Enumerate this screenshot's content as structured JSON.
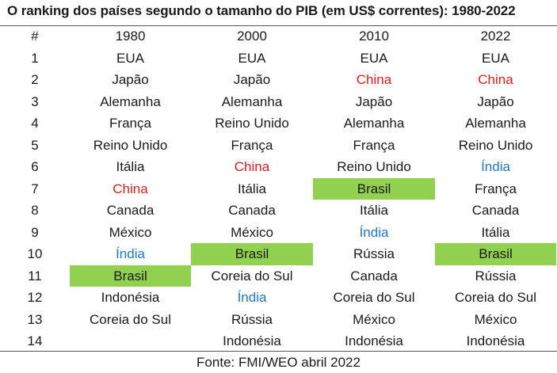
{
  "title": "O ranking dos países segundo o tamanho do PIB (em US$ correntes): 1980-2022",
  "header": {
    "rank": "#",
    "years": [
      "1980",
      "2000",
      "2010",
      "2022"
    ]
  },
  "rows": [
    {
      "rank": "1",
      "cells": [
        "EUA",
        "EUA",
        "EUA",
        "EUA"
      ]
    },
    {
      "rank": "2",
      "cells": [
        "Japão",
        "Japão",
        "China",
        "China"
      ]
    },
    {
      "rank": "3",
      "cells": [
        "Alemanha",
        "Alemanha",
        "Japão",
        "Japão"
      ]
    },
    {
      "rank": "4",
      "cells": [
        "França",
        "Reino Unido",
        "Alemanha",
        "Alemanha"
      ]
    },
    {
      "rank": "5",
      "cells": [
        "Reino Unido",
        "França",
        "França",
        "Reino Unido"
      ]
    },
    {
      "rank": "6",
      "cells": [
        "Itália",
        "China",
        "Reino Unido",
        "Índia"
      ]
    },
    {
      "rank": "7",
      "cells": [
        "China",
        "Itália",
        "Brasil",
        "França"
      ]
    },
    {
      "rank": "8",
      "cells": [
        "Canada",
        "Canada",
        "Itália",
        "Canada"
      ]
    },
    {
      "rank": "9",
      "cells": [
        "México",
        "México",
        "Índia",
        "Itália"
      ]
    },
    {
      "rank": "10",
      "cells": [
        "Índia",
        "Brasil",
        "Rússia",
        "Brasil"
      ]
    },
    {
      "rank": "11",
      "cells": [
        "Brasil",
        "Coreia do Sul",
        "Canada",
        "Rússia"
      ]
    },
    {
      "rank": "12",
      "cells": [
        "Indonésia",
        "Índia",
        "Coreia do Sul",
        "Coreia do Sul"
      ]
    },
    {
      "rank": "13",
      "cells": [
        "Coreia do Sul",
        "Rússia",
        "México",
        "México"
      ]
    },
    {
      "rank": "14",
      "cells": [
        "",
        "Indonésia",
        "Indonésia",
        "Indonésia"
      ]
    }
  ],
  "highlight": {
    "brasil_fill": "#92d050",
    "china_color": "#e21b1b",
    "india_color": "#1f78c4"
  },
  "source": "Fonte: FMI/WEO abril 2022"
}
